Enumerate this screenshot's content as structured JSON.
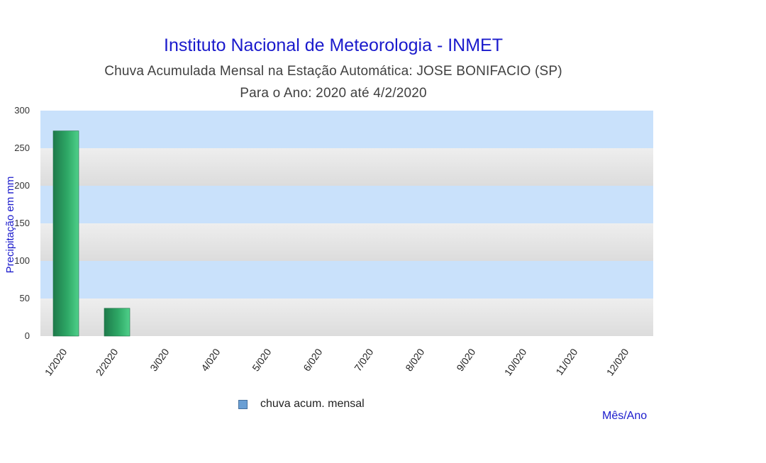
{
  "chart_data": {
    "type": "bar",
    "title": "Instituto Nacional de Meteorologia - INMET",
    "subtitle_lines": [
      "Chuva Acumulada Mensal na Estação Automática: JOSE BONIFACIO (SP)",
      "Para o Ano: 2020 até 4/2/2020"
    ],
    "xlabel": "Mês/Ano",
    "ylabel": "Precipitação em mm",
    "ylim": [
      0,
      300
    ],
    "yticks": [
      0,
      50,
      100,
      150,
      200,
      250,
      300
    ],
    "grid": true,
    "legend_position": "bottom",
    "categories": [
      "1/2020",
      "2/2020",
      "3/020",
      "4/020",
      "5/020",
      "6/020",
      "7/020",
      "8/020",
      "9/020",
      "10/020",
      "11/020",
      "12/020"
    ],
    "series": [
      {
        "name": "chuva acum. mensal",
        "values": [
          273,
          37,
          null,
          null,
          null,
          null,
          null,
          null,
          null,
          null,
          null,
          null
        ]
      }
    ],
    "colors": {
      "bar": "#2ea866",
      "bar_dark": "#1e7a4a",
      "bar_light": "#4fd08a",
      "legend_swatch": "#6a9fd4",
      "band_blue": "#c9e1fb",
      "band_gray": "#e6e6e6",
      "title": "#1a1acc"
    }
  }
}
